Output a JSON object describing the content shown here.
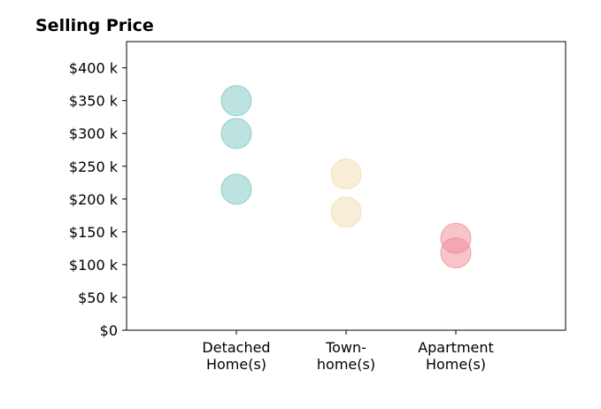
{
  "chart_data": {
    "type": "scatter",
    "title": "Selling Price",
    "xlabel": "",
    "ylabel": "",
    "categories": [
      {
        "lines": [
          "Detached",
          "Home(s)"
        ]
      },
      {
        "lines": [
          "Town-",
          "home(s)"
        ]
      },
      {
        "lines": [
          "Apartment",
          "Home(s)"
        ]
      }
    ],
    "xlim": [
      -1,
      3
    ],
    "ylim": [
      0,
      440
    ],
    "y_ticks": [
      {
        "value": 0,
        "label": "$0"
      },
      {
        "value": 50,
        "label": "$50 k"
      },
      {
        "value": 100,
        "label": "$100 k"
      },
      {
        "value": 150,
        "label": "$150 k"
      },
      {
        "value": 200,
        "label": "$200 k"
      },
      {
        "value": 250,
        "label": "$250 k"
      },
      {
        "value": 300,
        "label": "$300 k"
      },
      {
        "value": 350,
        "label": "$350 k"
      },
      {
        "value": 400,
        "label": "$400 k"
      }
    ],
    "grid": false,
    "legend": "none",
    "series": [
      {
        "category": 0,
        "values": [
          350,
          300,
          215
        ],
        "color": "#7ac7bf"
      },
      {
        "category": 1,
        "values": [
          238,
          180
        ],
        "color": "#f2dcae"
      },
      {
        "category": 2,
        "values": [
          140,
          118
        ],
        "color": "#f08a96"
      }
    ]
  }
}
